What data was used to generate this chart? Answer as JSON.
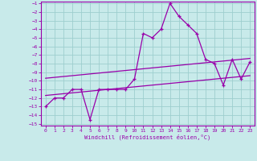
{
  "xlabel": "Windchill (Refroidissement éolien,°C)",
  "background_color": "#c8eaea",
  "grid_color": "#9ecece",
  "line_color": "#9900aa",
  "x_data": [
    0,
    1,
    2,
    3,
    4,
    5,
    6,
    7,
    8,
    9,
    10,
    11,
    12,
    13,
    14,
    15,
    16,
    17,
    18,
    19,
    20,
    21,
    22,
    23
  ],
  "y_main": [
    -13,
    -12,
    -12,
    -11,
    -11,
    -14.5,
    -11,
    -11,
    -11,
    -11,
    -9.8,
    -4.5,
    -5,
    -4,
    -1,
    -2.5,
    -3.5,
    -4.5,
    -7.5,
    -8,
    -10.5,
    -7.5,
    -9.8,
    -7.8
  ],
  "y_reg_upper": [
    -9.7,
    -9.6,
    -9.5,
    -9.4,
    -9.3,
    -9.2,
    -9.1,
    -9.0,
    -8.9,
    -8.8,
    -8.7,
    -8.6,
    -8.5,
    -8.4,
    -8.3,
    -8.2,
    -8.1,
    -8.0,
    -7.9,
    -7.8,
    -7.7,
    -7.6,
    -7.5,
    -7.4
  ],
  "y_reg_lower": [
    -11.7,
    -11.6,
    -11.5,
    -11.4,
    -11.3,
    -11.2,
    -11.1,
    -11.0,
    -10.9,
    -10.8,
    -10.7,
    -10.6,
    -10.5,
    -10.4,
    -10.3,
    -10.2,
    -10.1,
    -10.0,
    -9.9,
    -9.8,
    -9.7,
    -9.6,
    -9.5,
    -9.4
  ],
  "ylim": [
    -15.2,
    -0.8
  ],
  "xlim": [
    -0.5,
    23.5
  ],
  "yticks": [
    -15,
    -14,
    -13,
    -12,
    -11,
    -10,
    -9,
    -8,
    -7,
    -6,
    -5,
    -4,
    -3,
    -2,
    -1
  ],
  "xticks": [
    0,
    1,
    2,
    3,
    4,
    5,
    6,
    7,
    8,
    9,
    10,
    11,
    12,
    13,
    14,
    15,
    16,
    17,
    18,
    19,
    20,
    21,
    22,
    23
  ]
}
